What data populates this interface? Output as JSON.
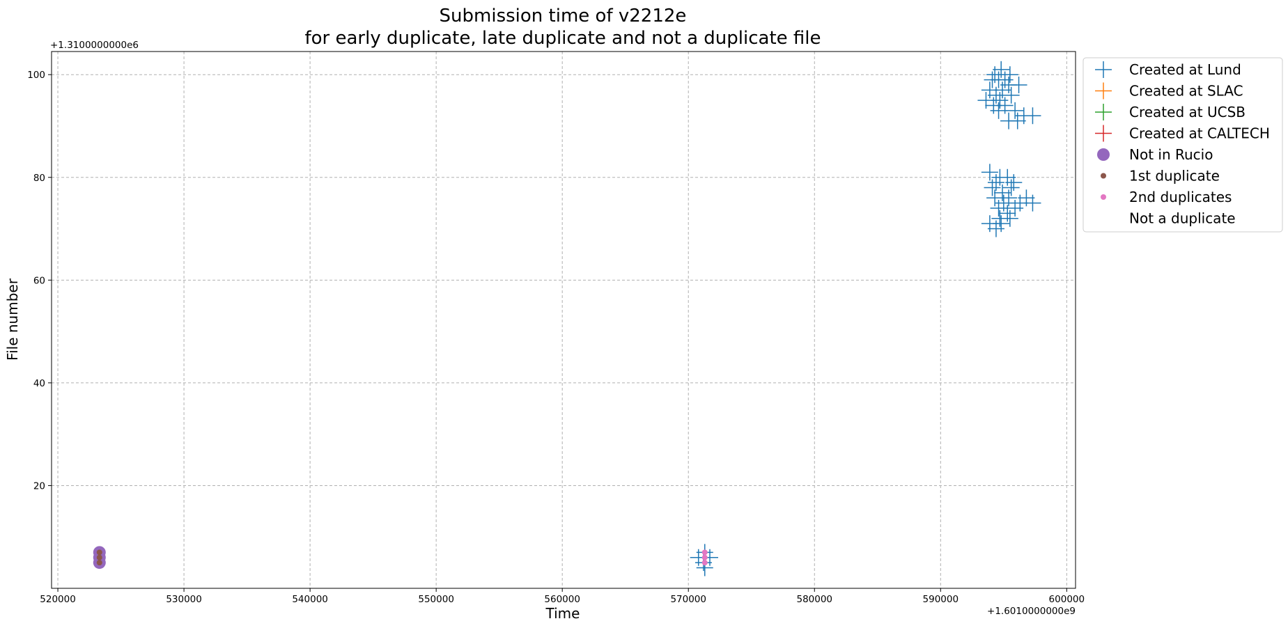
{
  "chart_data": {
    "type": "scatter",
    "title": [
      "Submission time of v2212e",
      "for early duplicate, late duplicate and not a duplicate file"
    ],
    "xlabel": "Time",
    "ylabel": "File number",
    "x_offset_label": "+1.6010000000e9",
    "y_offset_label": "+1.3100000000e6",
    "x_offset": 1601000000,
    "y_offset": 1310000,
    "xlim": [
      519500,
      600700
    ],
    "ylim": [
      0,
      104.5
    ],
    "x_ticks": [
      520000,
      530000,
      540000,
      550000,
      560000,
      570000,
      580000,
      590000,
      600000
    ],
    "x_tick_labels": [
      "520000",
      "530000",
      "540000",
      "550000",
      "560000",
      "570000",
      "580000",
      "590000",
      "600000"
    ],
    "y_ticks": [
      20,
      40,
      60,
      80,
      100
    ],
    "y_tick_labels": [
      "20",
      "40",
      "60",
      "80",
      "100"
    ],
    "grid": true,
    "legend_position": "outside-upper-right",
    "series": [
      {
        "name": "Created at Lund",
        "marker": "plus",
        "color": "#1f77b4",
        "points": [
          [
            594800,
            101
          ],
          [
            594300,
            100
          ],
          [
            595500,
            100
          ],
          [
            594600,
            99
          ],
          [
            594100,
            99
          ],
          [
            595100,
            99
          ],
          [
            596200,
            98
          ],
          [
            595400,
            98
          ],
          [
            593900,
            97
          ],
          [
            594900,
            97
          ],
          [
            595600,
            96
          ],
          [
            594400,
            96
          ],
          [
            593600,
            95
          ],
          [
            594700,
            95
          ],
          [
            594200,
            94
          ],
          [
            595100,
            94
          ],
          [
            595900,
            93
          ],
          [
            594600,
            93
          ],
          [
            596600,
            92
          ],
          [
            597300,
            92
          ],
          [
            595400,
            91
          ],
          [
            596100,
            91
          ],
          [
            593900,
            81
          ],
          [
            594700,
            80
          ],
          [
            595300,
            80
          ],
          [
            594400,
            79
          ],
          [
            595800,
            79
          ],
          [
            594100,
            78
          ],
          [
            595600,
            78
          ],
          [
            594900,
            77
          ],
          [
            594300,
            76
          ],
          [
            595400,
            76
          ],
          [
            596800,
            76
          ],
          [
            595000,
            75
          ],
          [
            596300,
            75
          ],
          [
            597300,
            75
          ],
          [
            594600,
            74
          ],
          [
            595900,
            74
          ],
          [
            595300,
            73
          ],
          [
            594700,
            72
          ],
          [
            595500,
            72
          ],
          [
            593900,
            71
          ],
          [
            594800,
            71
          ],
          [
            594400,
            70
          ],
          [
            571300,
            7
          ],
          [
            570800,
            6
          ],
          [
            571700,
            6
          ],
          [
            571200,
            5
          ],
          [
            571300,
            4
          ]
        ]
      },
      {
        "name": "Created at SLAC",
        "marker": "plus",
        "color": "#ff7f0e",
        "points": []
      },
      {
        "name": "Created at UCSB",
        "marker": "plus",
        "color": "#2ca02c",
        "points": []
      },
      {
        "name": "Created at CALTECH",
        "marker": "plus",
        "color": "#d62728",
        "points": []
      },
      {
        "name": "Not in Rucio",
        "marker": "circle-large",
        "color": "#9467bd",
        "points": [
          [
            523300,
            7
          ],
          [
            523300,
            6
          ],
          [
            523300,
            5
          ]
        ]
      },
      {
        "name": "1st duplicate",
        "marker": "circle-small",
        "color": "#8c564b",
        "points": [
          [
            523300,
            7
          ],
          [
            523300,
            6
          ],
          [
            523300,
            5
          ]
        ]
      },
      {
        "name": "2nd duplicates",
        "marker": "circle-small",
        "color": "#e377c2",
        "points": [
          [
            571300,
            7
          ],
          [
            571300,
            6
          ],
          [
            571300,
            5
          ]
        ]
      },
      {
        "name": "Not a duplicate",
        "marker": "none",
        "color": "#7f7f7f",
        "points": []
      }
    ]
  }
}
